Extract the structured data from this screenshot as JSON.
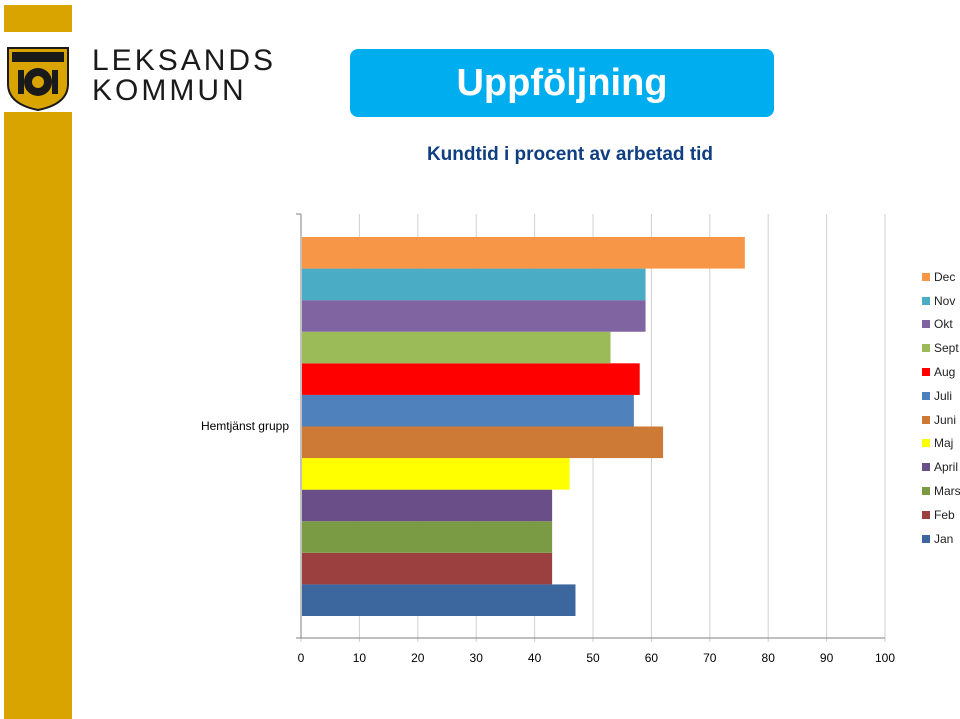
{
  "logo": {
    "name_line1": "LEKSANDS",
    "name_line2": "KOMMUN",
    "seal_icon": "coat-of-arms-icon",
    "accent_color": "#d9a400"
  },
  "banner": {
    "title": "Uppföljning",
    "color": "#00adef"
  },
  "chart_data": {
    "type": "bar",
    "orientation": "horizontal",
    "title": "Kundtid i procent av arbetad tid",
    "categories": [
      "Hemtjänst grupp"
    ],
    "xlim": [
      0,
      100
    ],
    "x_ticks": [
      "0",
      "10",
      "20",
      "30",
      "40",
      "50",
      "60",
      "70",
      "80",
      "90",
      "100"
    ],
    "grid": "vertical",
    "legend_position": "right",
    "series": [
      {
        "name": "Jan",
        "values": [
          47
        ],
        "color": "#3b679e"
      },
      {
        "name": "Feb",
        "values": [
          43
        ],
        "color": "#9b3f3f"
      },
      {
        "name": "Mars",
        "values": [
          43
        ],
        "color": "#7a9a44"
      },
      {
        "name": "April",
        "values": [
          43
        ],
        "color": "#6a4e88"
      },
      {
        "name": "Maj",
        "values": [
          46
        ],
        "color": "#ffff00"
      },
      {
        "name": "Juni",
        "values": [
          62
        ],
        "color": "#cd7a36"
      },
      {
        "name": "Juli",
        "values": [
          57
        ],
        "color": "#4f81bd"
      },
      {
        "name": "Aug",
        "values": [
          58
        ],
        "color": "#ff0000"
      },
      {
        "name": "Sept",
        "values": [
          53
        ],
        "color": "#9bbb59"
      },
      {
        "name": "Okt",
        "values": [
          59
        ],
        "color": "#8064a2"
      },
      {
        "name": "Nov",
        "values": [
          59
        ],
        "color": "#4bacc6"
      },
      {
        "name": "Dec",
        "values": [
          76
        ],
        "color": "#f79646"
      }
    ]
  }
}
